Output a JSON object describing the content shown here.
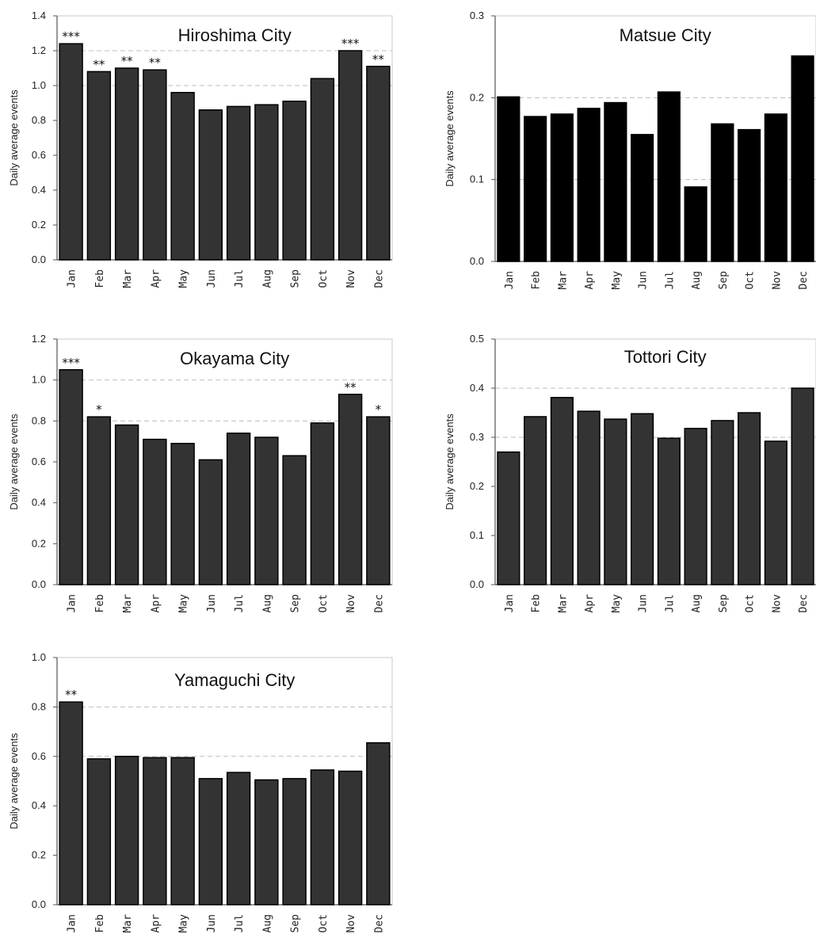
{
  "chart_data": [
    {
      "type": "bar",
      "title": "Hiroshima City",
      "ylabel": "Daily average events",
      "ylim": [
        0,
        1.4
      ],
      "yticks": [
        "0.0",
        "0.2",
        "0.4",
        "0.6",
        "0.8",
        "1.0",
        "1.2",
        "1.4"
      ],
      "grid_values": [
        1.0,
        1.2
      ],
      "bar_color": "#333333",
      "categories": [
        "Jan",
        "Feb",
        "Mar",
        "Apr",
        "May",
        "Jun",
        "Jul",
        "Aug",
        "Sep",
        "Oct",
        "Nov",
        "Dec"
      ],
      "values": [
        1.24,
        1.08,
        1.1,
        1.09,
        0.96,
        0.86,
        0.88,
        0.89,
        0.91,
        1.04,
        1.2,
        1.11
      ],
      "significance": [
        "***",
        "**",
        "**",
        "**",
        "",
        "",
        "",
        "",
        "",
        "",
        "***",
        "**"
      ]
    },
    {
      "type": "bar",
      "title": "Matsue City",
      "ylabel": "Daily average events",
      "ylim": [
        0,
        0.3
      ],
      "yticks": [
        "0.0",
        "0.1",
        "0.2",
        "0.3"
      ],
      "grid_values": [
        0.1,
        0.2
      ],
      "bar_color": "#000000",
      "categories": [
        "Jan",
        "Feb",
        "Mar",
        "Apr",
        "May",
        "Jun",
        "Jul",
        "Aug",
        "Sep",
        "Oct",
        "Nov",
        "Dec"
      ],
      "values": [
        0.201,
        0.177,
        0.18,
        0.187,
        0.194,
        0.155,
        0.207,
        0.091,
        0.168,
        0.161,
        0.18,
        0.251
      ],
      "significance": [
        "",
        "",
        "",
        "",
        "",
        "",
        "",
        "",
        "",
        "",
        "",
        ""
      ]
    },
    {
      "type": "bar",
      "title": "Okayama City",
      "ylabel": "Daily average events",
      "ylim": [
        0,
        1.2
      ],
      "yticks": [
        "0.0",
        "0.2",
        "0.4",
        "0.6",
        "0.8",
        "1.0",
        "1.2"
      ],
      "grid_values": [
        0.8,
        1.0
      ],
      "bar_color": "#333333",
      "categories": [
        "Jan",
        "Feb",
        "Mar",
        "Apr",
        "May",
        "Jun",
        "Jul",
        "Aug",
        "Sep",
        "Oct",
        "Nov",
        "Dec"
      ],
      "values": [
        1.05,
        0.82,
        0.78,
        0.71,
        0.69,
        0.61,
        0.74,
        0.72,
        0.63,
        0.79,
        0.93,
        0.82
      ],
      "significance": [
        "***",
        "*",
        "",
        "",
        "",
        "",
        "",
        "",
        "",
        "",
        "**",
        "*"
      ]
    },
    {
      "type": "bar",
      "title": "Tottori City",
      "ylabel": "Daily average events",
      "ylim": [
        0,
        0.5
      ],
      "yticks": [
        "0.0",
        "0.1",
        "0.2",
        "0.3",
        "0.4",
        "0.5"
      ],
      "grid_values": [
        0.3,
        0.4
      ],
      "bar_color": "#333333",
      "categories": [
        "Jan",
        "Feb",
        "Mar",
        "Apr",
        "May",
        "Jun",
        "Jul",
        "Aug",
        "Sep",
        "Oct",
        "Nov",
        "Dec"
      ],
      "values": [
        0.27,
        0.342,
        0.381,
        0.353,
        0.337,
        0.348,
        0.298,
        0.318,
        0.334,
        0.35,
        0.292,
        0.4
      ],
      "significance": [
        "",
        "",
        "",
        "",
        "",
        "",
        "",
        "",
        "",
        "",
        "",
        ""
      ]
    },
    {
      "type": "bar",
      "title": "Yamaguchi City",
      "ylabel": "Daily average events",
      "ylim": [
        0,
        1.0
      ],
      "yticks": [
        "0.0",
        "0.2",
        "0.4",
        "0.6",
        "0.8",
        "1.0"
      ],
      "grid_values": [
        0.6,
        0.8
      ],
      "bar_color": "#333333",
      "categories": [
        "Jan",
        "Feb",
        "Mar",
        "Apr",
        "May",
        "Jun",
        "Jul",
        "Aug",
        "Sep",
        "Oct",
        "Nov",
        "Dec"
      ],
      "values": [
        0.82,
        0.59,
        0.6,
        0.595,
        0.595,
        0.51,
        0.535,
        0.505,
        0.51,
        0.545,
        0.54,
        0.655
      ],
      "significance": [
        "**",
        "",
        "",
        "",
        "",
        "",
        "",
        "",
        "",
        "",
        "",
        ""
      ]
    }
  ]
}
